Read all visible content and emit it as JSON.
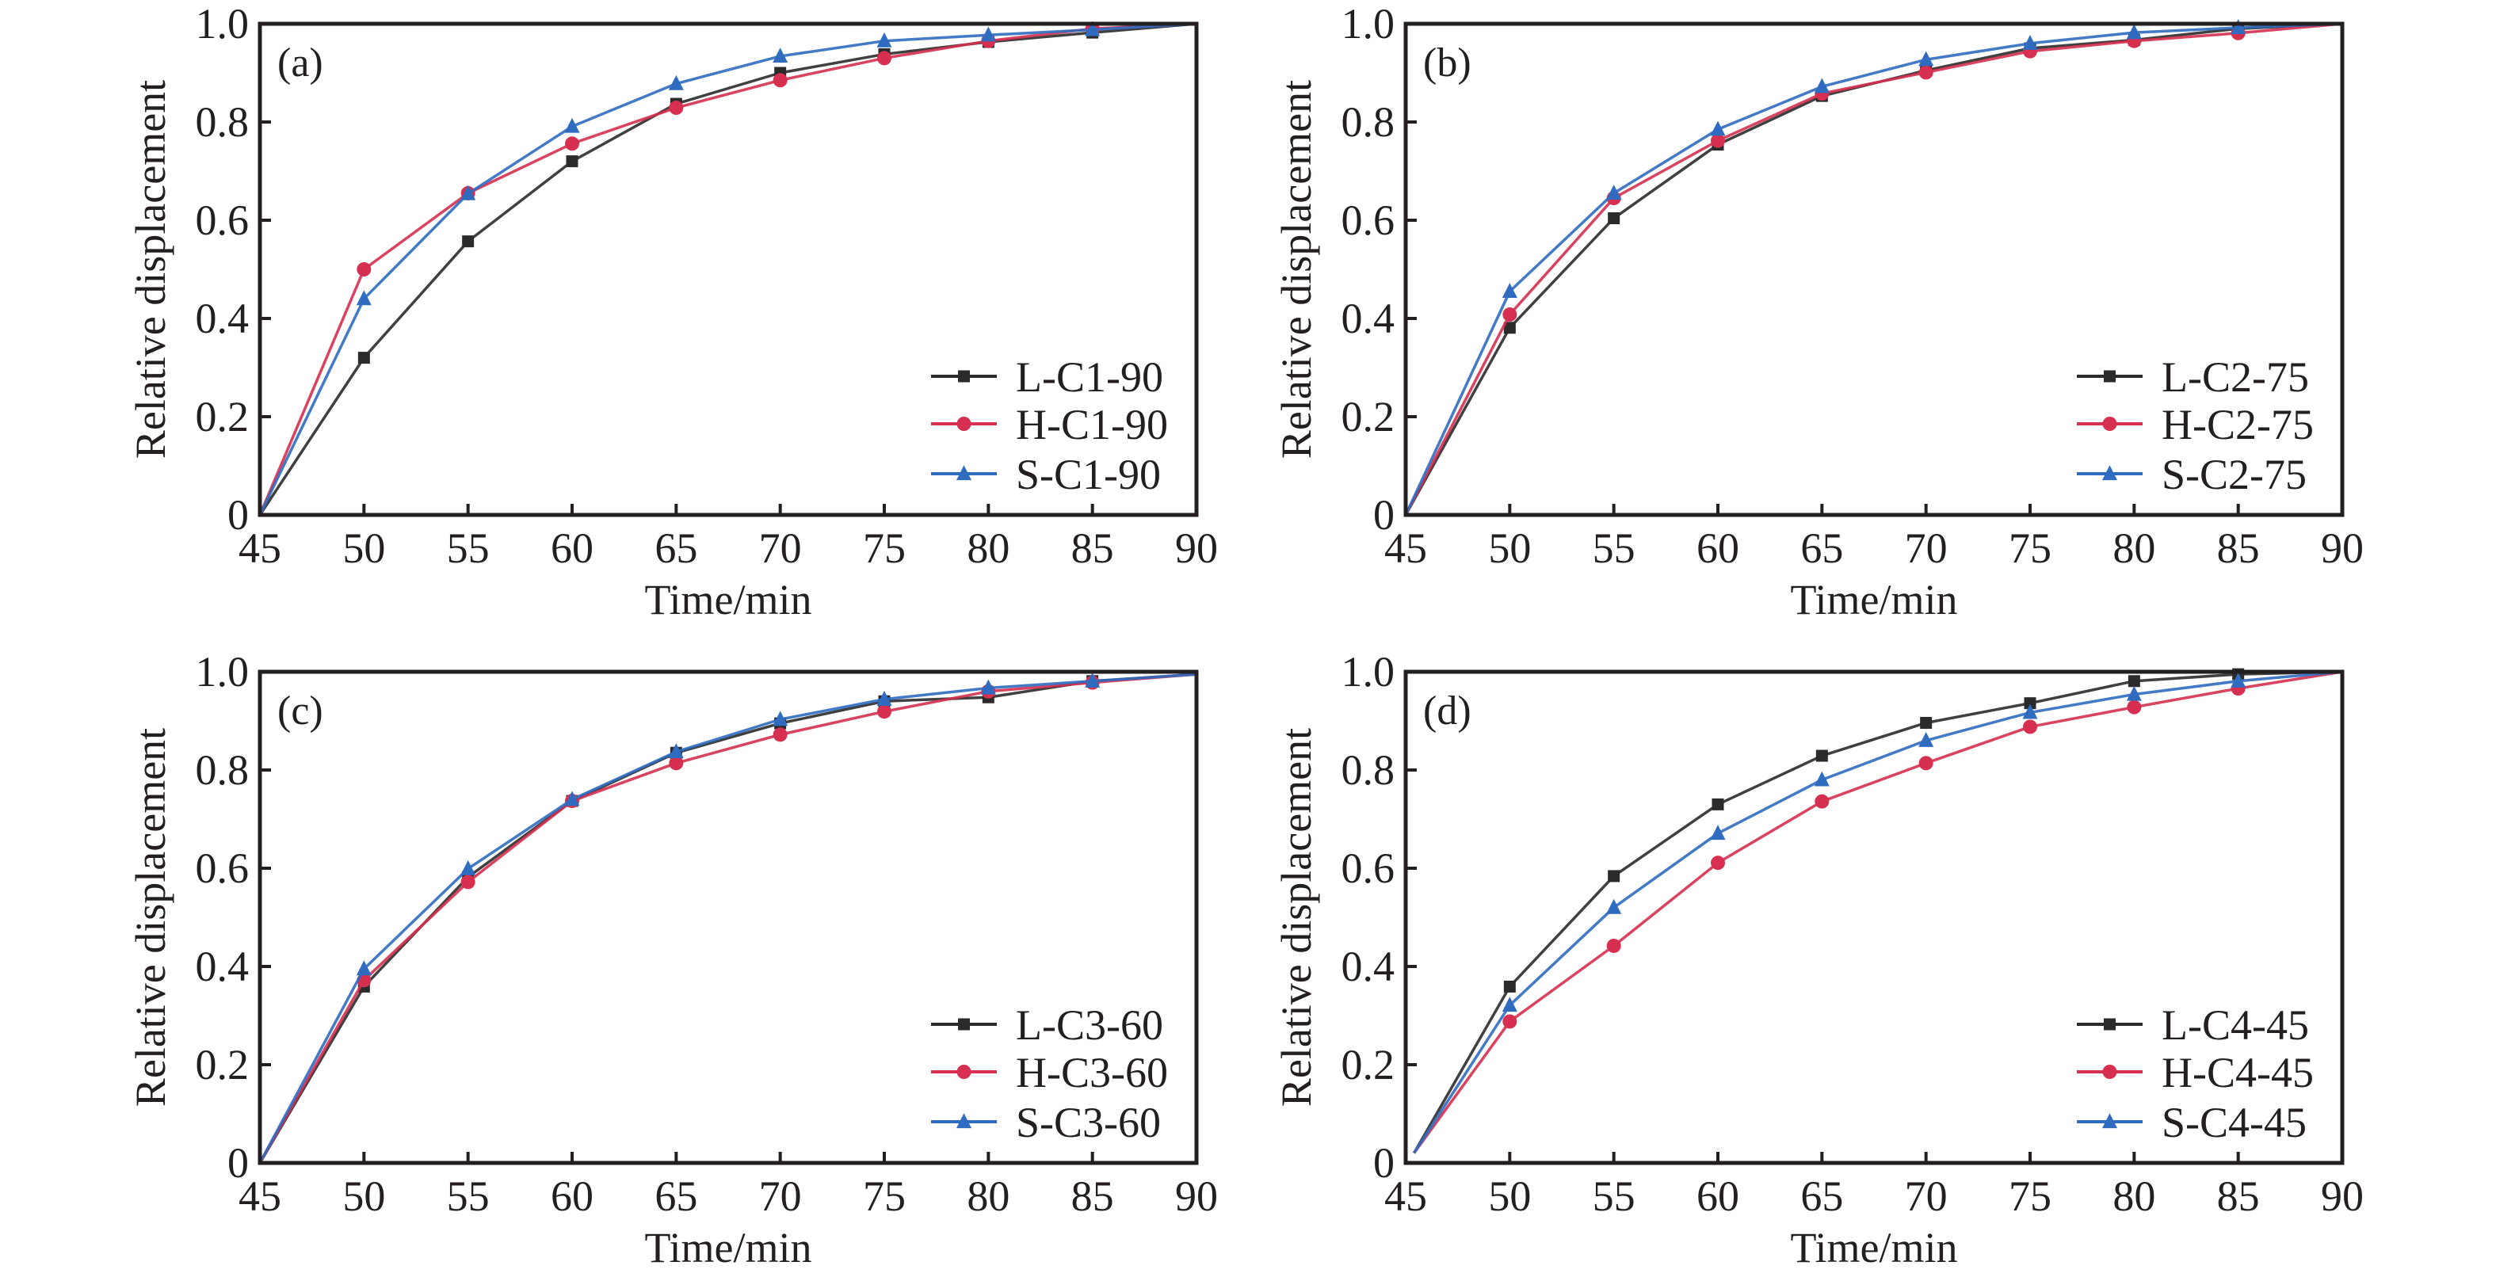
{
  "figure": {
    "panel_count": 4
  },
  "chart_data": [
    {
      "type": "line",
      "panel_label": "(a)",
      "title": "",
      "xlabel": "Time/min",
      "ylabel": "Relative displacement",
      "xlim": [
        45,
        90
      ],
      "ylim": [
        0,
        1.0
      ],
      "xticks": [
        45,
        50,
        55,
        60,
        65,
        70,
        75,
        80,
        85,
        90
      ],
      "yticks": [
        0,
        0.2,
        0.4,
        0.6,
        0.8,
        1.0
      ],
      "ytick_labels": [
        "0",
        "0.2",
        "0.4",
        "0.6",
        "0.8",
        "1.0"
      ],
      "grid": false,
      "legend_position": "bottom-right",
      "series": [
        {
          "name": "L-C1-90",
          "color": "#2b2b2b",
          "marker": "square",
          "x": [
            45,
            50,
            55,
            60,
            65,
            70,
            75,
            80,
            85,
            90
          ],
          "y": [
            0,
            0.32,
            0.557,
            0.72,
            0.837,
            0.9,
            0.938,
            0.963,
            0.982,
            1.0
          ]
        },
        {
          "name": "H-C1-90",
          "color": "#d62f4f",
          "marker": "circle",
          "x": [
            45,
            50,
            55,
            60,
            65,
            70,
            75,
            80,
            85,
            90
          ],
          "y": [
            0,
            0.5,
            0.655,
            0.756,
            0.829,
            0.885,
            0.93,
            0.965,
            0.99,
            1.0
          ]
        },
        {
          "name": "S-C1-90",
          "color": "#2f6cc0",
          "marker": "triangle",
          "x": [
            45,
            50,
            55,
            60,
            65,
            70,
            75,
            80,
            85,
            90
          ],
          "y": [
            0,
            0.44,
            0.654,
            0.791,
            0.878,
            0.934,
            0.965,
            0.977,
            0.988,
            1.0
          ]
        }
      ]
    },
    {
      "type": "line",
      "panel_label": "(b)",
      "title": "",
      "xlabel": "Time/min",
      "ylabel": "Relative displacement",
      "xlim": [
        45,
        90
      ],
      "ylim": [
        0,
        1.0
      ],
      "xticks": [
        45,
        50,
        55,
        60,
        65,
        70,
        75,
        80,
        85,
        90
      ],
      "yticks": [
        0,
        0.2,
        0.4,
        0.6,
        0.8,
        1.0
      ],
      "ytick_labels": [
        "0",
        "0.2",
        "0.4",
        "0.6",
        "0.8",
        "1.0"
      ],
      "grid": false,
      "legend_position": "bottom-right",
      "series": [
        {
          "name": "L-C2-75",
          "color": "#2b2b2b",
          "marker": "square",
          "x": [
            45,
            50,
            55,
            60,
            65,
            70,
            75,
            80,
            85,
            90
          ],
          "y": [
            0,
            0.381,
            0.604,
            0.754,
            0.853,
            0.905,
            0.95,
            0.967,
            0.99,
            1.0
          ]
        },
        {
          "name": "H-C2-75",
          "color": "#d62f4f",
          "marker": "circle",
          "x": [
            45,
            50,
            55,
            60,
            65,
            70,
            75,
            80,
            85,
            90
          ],
          "y": [
            0,
            0.408,
            0.645,
            0.762,
            0.858,
            0.901,
            0.944,
            0.965,
            0.981,
            1.0
          ]
        },
        {
          "name": "S-C2-75",
          "color": "#2f6cc0",
          "marker": "triangle",
          "x": [
            45,
            50,
            55,
            60,
            65,
            70,
            75,
            80,
            85,
            90
          ],
          "y": [
            0,
            0.455,
            0.655,
            0.785,
            0.872,
            0.927,
            0.96,
            0.982,
            0.992,
            1.0
          ]
        }
      ]
    },
    {
      "type": "line",
      "panel_label": "(c)",
      "title": "",
      "xlabel": "Time/min",
      "ylabel": "Relative displacement",
      "xlim": [
        45,
        90
      ],
      "ylim": [
        0,
        1.0
      ],
      "xticks": [
        45,
        50,
        55,
        60,
        65,
        70,
        75,
        80,
        85,
        90
      ],
      "yticks": [
        0,
        0.2,
        0.4,
        0.6,
        0.8,
        1.0
      ],
      "ytick_labels": [
        "0",
        "0.2",
        "0.4",
        "0.6",
        "0.8",
        "1.0"
      ],
      "grid": false,
      "legend_position": "bottom-right",
      "series": [
        {
          "name": "L-C3-60",
          "color": "#2b2b2b",
          "marker": "square",
          "x": [
            45,
            50,
            55,
            60,
            65,
            70,
            75,
            80,
            85,
            90
          ],
          "y": [
            0,
            0.359,
            0.582,
            0.737,
            0.835,
            0.895,
            0.94,
            0.948,
            0.981,
            0.995
          ]
        },
        {
          "name": "H-C3-60",
          "color": "#d62f4f",
          "marker": "circle",
          "x": [
            45,
            50,
            55,
            60,
            65,
            70,
            75,
            80,
            85,
            90
          ],
          "y": [
            0,
            0.372,
            0.572,
            0.737,
            0.814,
            0.872,
            0.919,
            0.96,
            0.978,
            0.995
          ]
        },
        {
          "name": "S-C3-60",
          "color": "#2f6cc0",
          "marker": "triangle",
          "x": [
            45,
            50,
            55,
            60,
            65,
            70,
            75,
            80,
            85,
            90
          ],
          "y": [
            0,
            0.395,
            0.599,
            0.74,
            0.837,
            0.903,
            0.944,
            0.967,
            0.981,
            0.995
          ]
        }
      ]
    },
    {
      "type": "line",
      "panel_label": "(d)",
      "title": "",
      "xlabel": "Time/min",
      "ylabel": "Relative displacement",
      "xlim": [
        45,
        90
      ],
      "ylim": [
        0,
        1.0
      ],
      "xticks": [
        45,
        50,
        55,
        60,
        65,
        70,
        75,
        80,
        85,
        90
      ],
      "yticks": [
        0,
        0.2,
        0.4,
        0.6,
        0.8,
        1.0
      ],
      "ytick_labels": [
        "0",
        "0.2",
        "0.4",
        "0.6",
        "0.8",
        "1.0"
      ],
      "grid": false,
      "legend_position": "bottom-right",
      "series": [
        {
          "name": "L-C4-45",
          "color": "#2b2b2b",
          "marker": "square",
          "x": [
            45.4,
            50,
            55,
            60,
            65,
            70,
            75,
            80,
            85,
            90
          ],
          "y": [
            0.02,
            0.359,
            0.584,
            0.73,
            0.829,
            0.896,
            0.936,
            0.981,
            0.995,
            1.0
          ]
        },
        {
          "name": "H-C4-45",
          "color": "#d62f4f",
          "marker": "circle",
          "x": [
            45.4,
            50,
            55,
            60,
            65,
            70,
            75,
            80,
            85,
            90
          ],
          "y": [
            0.02,
            0.288,
            0.442,
            0.611,
            0.736,
            0.814,
            0.888,
            0.928,
            0.966,
            1.0
          ]
        },
        {
          "name": "S-C4-45",
          "color": "#2f6cc0",
          "marker": "triangle",
          "x": [
            45.4,
            50,
            55,
            60,
            65,
            70,
            75,
            80,
            85,
            90
          ],
          "y": [
            0.02,
            0.321,
            0.52,
            0.671,
            0.78,
            0.86,
            0.917,
            0.954,
            0.981,
            1.0
          ]
        }
      ]
    }
  ]
}
